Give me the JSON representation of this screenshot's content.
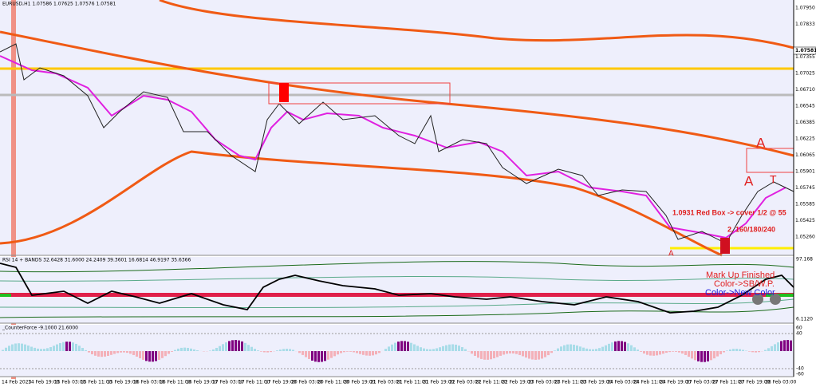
{
  "header": "EURUSD,H1  1.07586 1.07625 1.07576 1.07581",
  "price_axis": [
    "1.07950",
    "1.07833",
    "1.07581",
    "1.07355",
    "1.07025",
    "1.06710",
    "1.06545",
    "1.06385",
    "1.06225",
    "1.06065",
    "1.05901",
    "1.05745",
    "1.05585",
    "1.05425",
    "1.05260"
  ],
  "annotations": {
    "a_top": "A",
    "a_left": "A",
    "t": "T",
    "a_bottom": "A",
    "red_box_note": "1.0931 Red Box -> cover 1/2 @ 55",
    "targets": "2. 160/180/240"
  },
  "rsi_panel": {
    "label": "RSI 14 + BANDS 32.6428 31.6000 24.2409 39.3601 16.6814 46.9197 35.6366",
    "axis_top": "97.168",
    "axis_bottom": "6.1120",
    "notes": [
      "Mark Up Finished",
      "Color->SB/W.P.",
      "Color->New Color"
    ]
  },
  "cf_panel": {
    "label": "_CounterForce -9.1000 21.6000",
    "axis": [
      "60",
      "40",
      "-40",
      "-60"
    ]
  },
  "time_axis": [
    "14 Feb 2023",
    "14 Feb 19:00",
    "15 Feb 03:00",
    "15 Feb 11:00",
    "15 Feb 19:00",
    "16 Feb 03:00",
    "16 Feb 11:00",
    "16 Feb 19:00",
    "17 Feb 03:00",
    "17 Feb 11:00",
    "17 Feb 19:00",
    "20 Feb 03:00",
    "20 Feb 11:00",
    "20 Feb 19:00",
    "21 Feb 03:00",
    "21 Feb 11:00",
    "21 Feb 19:00",
    "22 Feb 03:00",
    "22 Feb 11:00",
    "22 Feb 19:00",
    "23 Feb 03:00",
    "23 Feb 11:00",
    "23 Feb 19:00",
    "24 Feb 03:00",
    "24 Feb 11:00",
    "24 Feb 19:00",
    "27 Feb 03:00",
    "27 Feb 11:00",
    "27 Feb 19:00",
    "28 Feb 03:00"
  ]
}
